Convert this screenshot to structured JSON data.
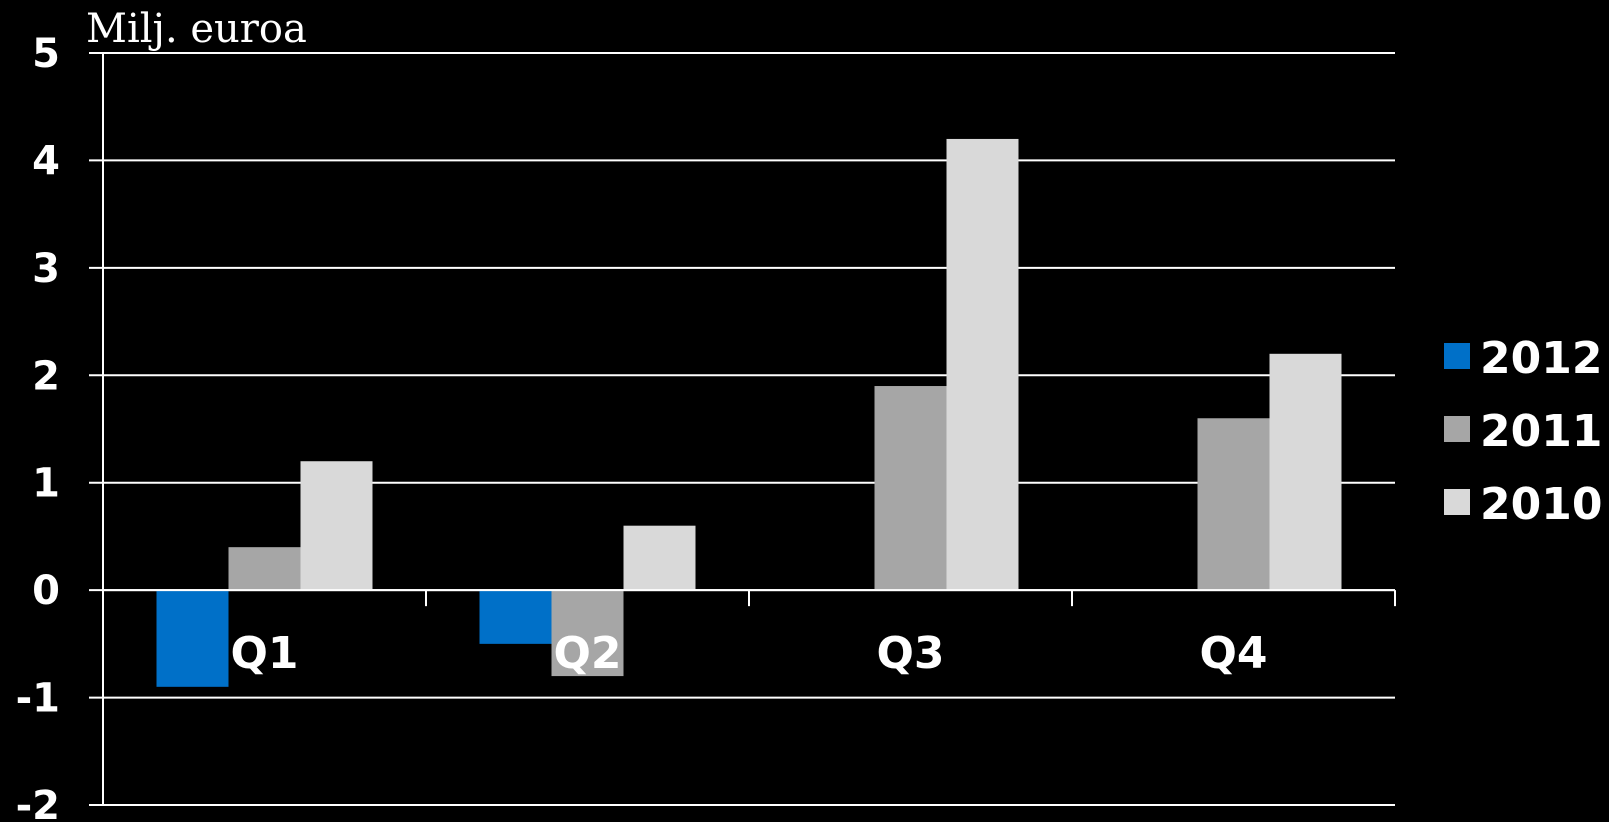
{
  "chart_data": {
    "type": "bar",
    "title": "",
    "ylabel": "Milj. euroa",
    "xlabel": "",
    "categories": [
      "Q1",
      "Q2",
      "Q3",
      "Q4"
    ],
    "series": [
      {
        "name": "2012",
        "values": [
          -0.9,
          -0.5,
          null,
          null
        ],
        "color": "#0070C8"
      },
      {
        "name": "2011",
        "values": [
          0.4,
          -0.8,
          1.9,
          1.6
        ],
        "color": "#A6A6A6"
      },
      {
        "name": "2010",
        "values": [
          1.2,
          0.6,
          4.2,
          2.2
        ],
        "color": "#D9D9D9"
      }
    ],
    "ylim": [
      -2,
      5
    ],
    "yticks": [
      "-2",
      "-1",
      "0",
      "1",
      "2",
      "3",
      "4",
      "5"
    ],
    "grid": true,
    "legend_position": "right",
    "background": "#000000",
    "text_color": "#FFFFFF"
  }
}
